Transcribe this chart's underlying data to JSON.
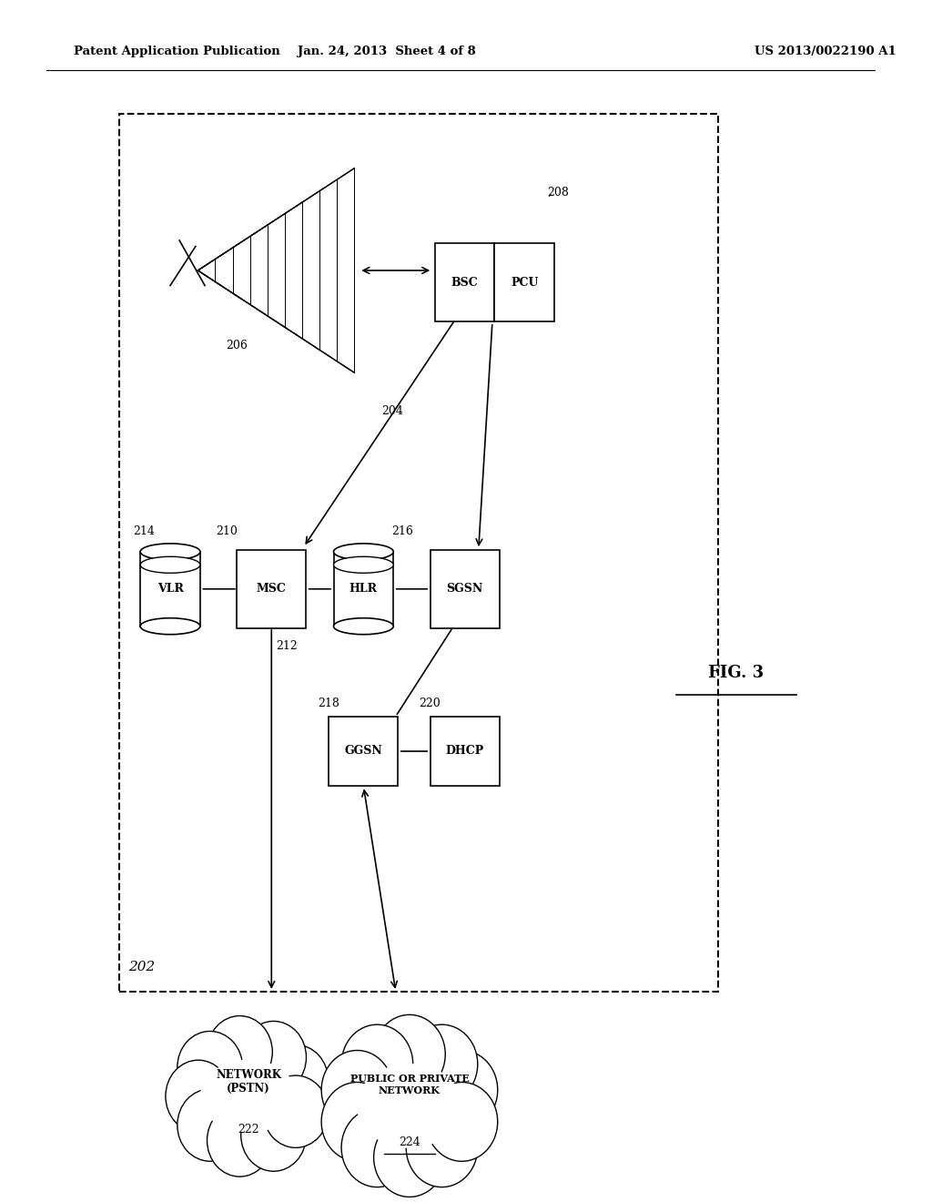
{
  "header_left": "Patent Application Publication",
  "header_center": "Jan. 24, 2013  Sheet 4 of 8",
  "header_right": "US 2013/0022190 A1",
  "fig_label": "FIG. 3",
  "outer_box_label": "202",
  "background_color": "#ffffff"
}
